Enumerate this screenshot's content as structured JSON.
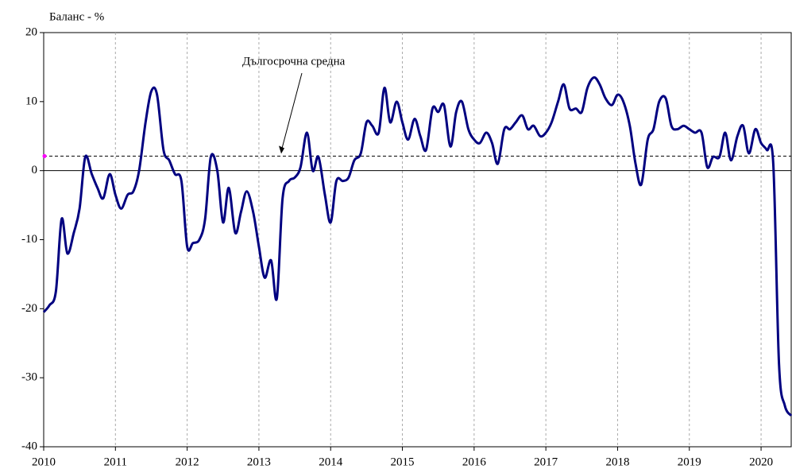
{
  "chart_data": {
    "type": "line",
    "ylabel": "Баланс - %",
    "annotation": "Дългосрочна средна",
    "average": 2.1,
    "average_color": "#000000",
    "marker_color": "#ff00ff",
    "xlim": [
      2010,
      2020.42
    ],
    "xticks": [
      2010,
      2011,
      2012,
      2013,
      2014,
      2015,
      2016,
      2017,
      2018,
      2019,
      2020
    ],
    "ylim": [
      -40,
      20
    ],
    "yticks": [
      -40,
      -30,
      -20,
      -10,
      0,
      10,
      20
    ],
    "grid": true,
    "x": [
      2010,
      2010.08,
      2010.17,
      2010.25,
      2010.33,
      2010.42,
      2010.5,
      2010.58,
      2010.67,
      2010.75,
      2010.83,
      2010.92,
      2011,
      2011.08,
      2011.17,
      2011.25,
      2011.33,
      2011.42,
      2011.5,
      2011.58,
      2011.67,
      2011.75,
      2011.83,
      2011.92,
      2012,
      2012.08,
      2012.17,
      2012.25,
      2012.33,
      2012.42,
      2012.5,
      2012.58,
      2012.67,
      2012.75,
      2012.83,
      2012.92,
      2013,
      2013.08,
      2013.17,
      2013.25,
      2013.33,
      2013.42,
      2013.5,
      2013.58,
      2013.67,
      2013.75,
      2013.83,
      2013.92,
      2014,
      2014.08,
      2014.17,
      2014.25,
      2014.33,
      2014.42,
      2014.5,
      2014.58,
      2014.67,
      2014.75,
      2014.83,
      2014.92,
      2015,
      2015.08,
      2015.17,
      2015.25,
      2015.33,
      2015.42,
      2015.5,
      2015.58,
      2015.67,
      2015.75,
      2015.83,
      2015.92,
      2016,
      2016.08,
      2016.17,
      2016.25,
      2016.33,
      2016.42,
      2016.5,
      2016.58,
      2016.67,
      2016.75,
      2016.83,
      2016.92,
      2017,
      2017.08,
      2017.17,
      2017.25,
      2017.33,
      2017.42,
      2017.5,
      2017.58,
      2017.67,
      2017.75,
      2017.83,
      2017.92,
      2018,
      2018.08,
      2018.17,
      2018.25,
      2018.33,
      2018.42,
      2018.5,
      2018.58,
      2018.67,
      2018.75,
      2018.83,
      2018.92,
      2019,
      2019.08,
      2019.17,
      2019.25,
      2019.33,
      2019.42,
      2019.5,
      2019.58,
      2019.67,
      2019.75,
      2019.83,
      2019.92,
      2020,
      2020.08,
      2020.17,
      2020.25,
      2020.33,
      2020.42
    ],
    "series": [
      {
        "name": "Баланс",
        "color": "#000080",
        "values": [
          -20.5,
          -19.5,
          -17.5,
          -7,
          -12,
          -9,
          -5.5,
          2,
          -0.5,
          -2.5,
          -4,
          -0.5,
          -3.5,
          -5.5,
          -3.5,
          -3,
          0,
          7,
          11.5,
          11,
          3,
          1.5,
          -0.5,
          -1.5,
          -11,
          -10.5,
          -10,
          -7,
          2,
          0,
          -7.5,
          -2.5,
          -9,
          -6,
          -3,
          -6,
          -11,
          -15.5,
          -13,
          -18.5,
          -4,
          -1.5,
          -1,
          0.5,
          5.5,
          0,
          2,
          -3.5,
          -7.5,
          -1.5,
          -1.5,
          -1,
          1.5,
          2.5,
          7,
          6.5,
          5.5,
          12,
          7,
          10,
          7,
          4.5,
          7.5,
          5,
          3,
          9,
          8.5,
          9.5,
          3.5,
          8.5,
          10,
          6,
          4.5,
          4,
          5.5,
          4,
          1,
          6,
          6,
          7,
          8,
          6,
          6.5,
          5,
          5.5,
          7,
          10,
          12.5,
          9,
          9,
          8.5,
          12,
          13.5,
          12.5,
          10.5,
          9.5,
          11,
          10,
          6.5,
          1,
          -2,
          4.5,
          6,
          10,
          10.5,
          6.5,
          6,
          6.5,
          6,
          5.5,
          5.5,
          0.5,
          2,
          2,
          5.5,
          1.5,
          5,
          6.5,
          2.5,
          6,
          4,
          3,
          1,
          -28,
          -34,
          -35.5
        ]
      }
    ]
  }
}
